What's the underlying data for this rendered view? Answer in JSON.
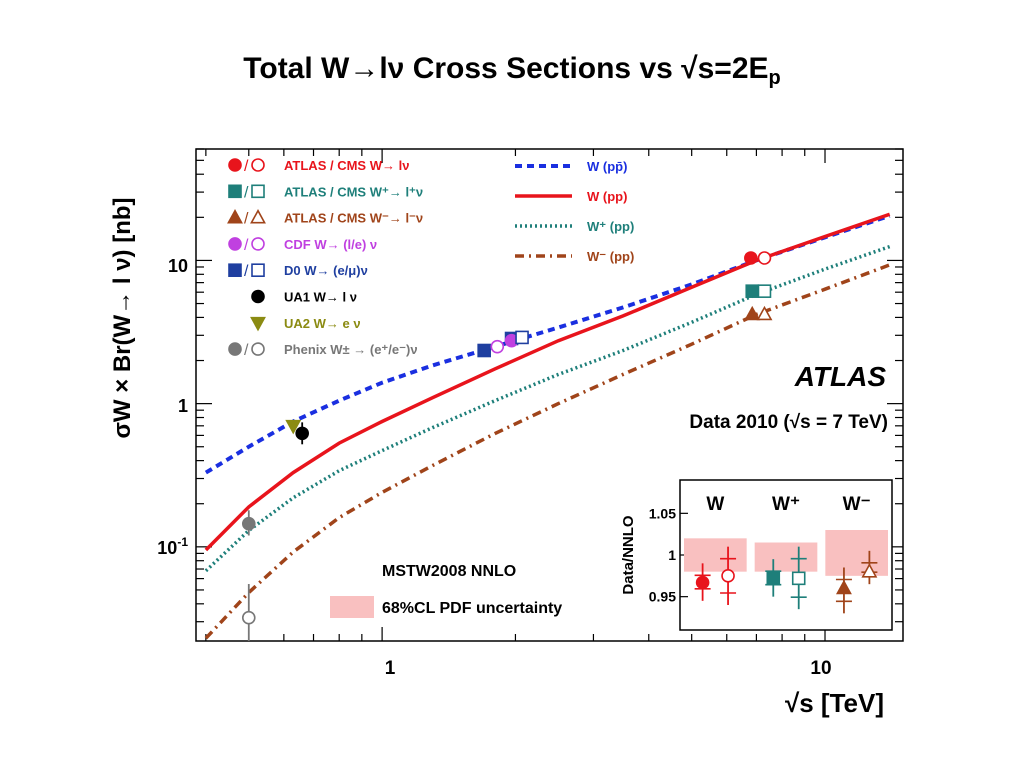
{
  "slide": {
    "title_main": "Total W→lν Cross Sections vs √s=2E",
    "title_sub": "p"
  },
  "chart_data": {
    "type": "scatter",
    "x_scale": "log",
    "y_scale": "log",
    "xlim": [
      0.38,
      15
    ],
    "ylim": [
      0.022,
      60
    ],
    "ylabel": "σW × Br(W→ l ν) [nb]",
    "xlabel": "√s [TeV]",
    "x_ticks": [
      {
        "value": 1,
        "label": "1"
      },
      {
        "value": 10,
        "label": "10"
      }
    ],
    "y_ticks": [
      {
        "value": 0.1,
        "label": "10⁻¹"
      },
      {
        "value": 1,
        "label": "1"
      },
      {
        "value": 10,
        "label": "10"
      }
    ],
    "experiment_label": "ATLAS",
    "data_label": "Data 2010 (√s = 7 TeV)",
    "theory_label": "MSTW2008 NNLO",
    "band_label": "68%CL PDF uncertainty",
    "colors": {
      "atlas_w": "#e8141c",
      "atlas_wplus": "#1e7f7a",
      "atlas_wminus": "#a0441a",
      "cdf": "#c040e0",
      "d0": "#1f3fa0",
      "ua1": "#000000",
      "ua2": "#8b8b12",
      "phenix": "#777777",
      "w_ppbar": "#1a2fe0",
      "w_pp": "#e8141c",
      "wplus_pp": "#1e7f7a",
      "wminus_pp": "#a0441a",
      "pdf_band": "#f9c0c0"
    },
    "legend_markers": [
      {
        "label": "ATLAS / CMS W→ lν",
        "color": "atlas_w",
        "shape": "circle"
      },
      {
        "label": "ATLAS / CMS W⁺→ l⁺ν",
        "color": "atlas_wplus",
        "shape": "square"
      },
      {
        "label": "ATLAS / CMS W⁻→ l⁻ν",
        "color": "atlas_wminus",
        "shape": "triangle"
      },
      {
        "label": "CDF W→ (l/e) ν",
        "color": "cdf",
        "shape": "circle"
      },
      {
        "label": "D0 W→ (e/μ)ν",
        "color": "d0",
        "shape": "square"
      },
      {
        "label": "UA1 W→ l ν",
        "color": "ua1",
        "shape": "circle-single"
      },
      {
        "label": "UA2 W→ e ν",
        "color": "ua2",
        "shape": "tri-down-single"
      },
      {
        "label": "Phenix W± → (e⁺/e⁻)ν",
        "color": "phenix",
        "shape": "circle"
      }
    ],
    "legend_curves": [
      {
        "label": "W (pp̄)",
        "color": "w_ppbar",
        "style": "dash"
      },
      {
        "label": "W (pp)",
        "color": "w_pp",
        "style": "solid"
      },
      {
        "label": "W⁺ (pp)",
        "color": "wplus_pp",
        "style": "dot"
      },
      {
        "label": "W⁻ (pp)",
        "color": "wminus_pp",
        "style": "dashdot"
      }
    ],
    "curves": [
      {
        "name": "W (pp̄)",
        "color": "w_ppbar",
        "style": "dash",
        "x": [
          0.4,
          0.5,
          0.63,
          0.8,
          1.0,
          1.3,
          1.8,
          2.5,
          3.5,
          5.0,
          7.0,
          10.0,
          14.0
        ],
        "y": [
          0.33,
          0.5,
          0.75,
          1.05,
          1.4,
          1.85,
          2.5,
          3.4,
          4.7,
          6.8,
          10.0,
          14.5,
          20.5
        ]
      },
      {
        "name": "W (pp)",
        "color": "w_pp",
        "style": "solid",
        "x": [
          0.4,
          0.5,
          0.63,
          0.8,
          1.0,
          1.3,
          1.8,
          2.5,
          3.5,
          5.0,
          7.0,
          10.0,
          14.0
        ],
        "y": [
          0.095,
          0.19,
          0.33,
          0.53,
          0.75,
          1.1,
          1.75,
          2.75,
          4.1,
          6.5,
          10.0,
          14.7,
          21.0
        ]
      },
      {
        "name": "W⁺ (pp)",
        "color": "wplus_pp",
        "style": "dot",
        "x": [
          0.4,
          0.5,
          0.63,
          0.8,
          1.0,
          1.3,
          1.8,
          2.5,
          3.5,
          5.0,
          7.0,
          10.0,
          14.0
        ],
        "y": [
          0.068,
          0.13,
          0.22,
          0.34,
          0.47,
          0.68,
          1.05,
          1.6,
          2.35,
          3.7,
          5.8,
          8.7,
          12.5
        ]
      },
      {
        "name": "W⁻ (pp)",
        "color": "wminus_pp",
        "style": "dashdot",
        "x": [
          0.4,
          0.5,
          0.63,
          0.8,
          1.0,
          1.3,
          1.8,
          2.5,
          3.5,
          5.0,
          7.0,
          10.0,
          14.0
        ],
        "y": [
          0.023,
          0.048,
          0.092,
          0.16,
          0.24,
          0.37,
          0.62,
          1.0,
          1.6,
          2.6,
          4.2,
          6.3,
          9.3
        ]
      }
    ],
    "points": [
      {
        "x": 0.5,
        "y": 0.145,
        "color": "phenix",
        "shape": "circle",
        "filled": true,
        "err": [
          0.12,
          0.18
        ]
      },
      {
        "x": 0.5,
        "y": 0.032,
        "color": "phenix",
        "shape": "circle",
        "filled": false,
        "err": [
          0.022,
          0.055
        ]
      },
      {
        "x": 0.63,
        "y": 0.7,
        "color": "ua2",
        "shape": "tri-down",
        "filled": true,
        "err": [
          0.64,
          0.76
        ]
      },
      {
        "x": 0.66,
        "y": 0.62,
        "color": "ua1",
        "shape": "circle",
        "filled": true,
        "err": [
          0.52,
          0.74
        ]
      },
      {
        "x": 1.7,
        "y": 2.35,
        "color": "d0",
        "shape": "square",
        "filled": true,
        "err": [
          2.3,
          2.4
        ]
      },
      {
        "x": 1.82,
        "y": 2.5,
        "color": "cdf",
        "shape": "circle",
        "filled": false,
        "err": [
          2.45,
          2.55
        ]
      },
      {
        "x": 1.96,
        "y": 2.85,
        "color": "d0",
        "shape": "square",
        "filled": true,
        "err": [
          2.8,
          2.9
        ]
      },
      {
        "x": 1.96,
        "y": 2.75,
        "color": "cdf",
        "shape": "circle",
        "filled": true,
        "err": [
          2.7,
          2.8
        ]
      },
      {
        "x": 2.07,
        "y": 2.9,
        "color": "d0",
        "shape": "square",
        "filled": false,
        "err": [
          2.85,
          2.95
        ]
      },
      {
        "x": 6.8,
        "y": 10.4,
        "color": "atlas_w",
        "shape": "circle",
        "filled": true,
        "err": [
          10.2,
          10.6
        ]
      },
      {
        "x": 7.3,
        "y": 10.4,
        "color": "atlas_w",
        "shape": "circle",
        "filled": false,
        "err": [
          10.2,
          10.6
        ]
      },
      {
        "x": 6.85,
        "y": 6.1,
        "color": "atlas_wplus",
        "shape": "square",
        "filled": true,
        "err": [
          6.0,
          6.2
        ]
      },
      {
        "x": 7.3,
        "y": 6.1,
        "color": "atlas_wplus",
        "shape": "square",
        "filled": false,
        "err": [
          6.0,
          6.2
        ]
      },
      {
        "x": 6.85,
        "y": 4.2,
        "color": "atlas_wminus",
        "shape": "triangle",
        "filled": true,
        "err": [
          4.1,
          4.3
        ]
      },
      {
        "x": 7.3,
        "y": 4.2,
        "color": "atlas_wminus",
        "shape": "triangle",
        "filled": false,
        "err": [
          4.1,
          4.3
        ]
      }
    ],
    "inset": {
      "ylabel": "Data/NNLO",
      "ylim": [
        0.91,
        1.09
      ],
      "y_ticks": [
        {
          "value": 0.95,
          "label": "0.95"
        },
        {
          "value": 1.0,
          "label": "1"
        },
        {
          "value": 1.05,
          "label": "1.05"
        }
      ],
      "groups": [
        {
          "label": "W",
          "band": [
            0.98,
            1.02
          ],
          "points": [
            {
              "y": 0.967,
              "err": [
                0.945,
                0.99
              ],
              "color": "atlas_w",
              "shape": "circle",
              "filled": true
            },
            {
              "y": 0.975,
              "err": [
                0.94,
                1.01
              ],
              "color": "atlas_w",
              "shape": "circle",
              "filled": false
            }
          ]
        },
        {
          "label": "W⁺",
          "band": [
            0.98,
            1.015
          ],
          "points": [
            {
              "y": 0.972,
              "err": [
                0.95,
                0.995
              ],
              "color": "atlas_wplus",
              "shape": "square",
              "filled": true
            },
            {
              "y": 0.972,
              "err": [
                0.935,
                1.01
              ],
              "color": "atlas_wplus",
              "shape": "square",
              "filled": false
            }
          ]
        },
        {
          "label": "W⁻",
          "band": [
            0.975,
            1.03
          ],
          "points": [
            {
              "y": 0.96,
              "err": [
                0.93,
                0.985
              ],
              "color": "atlas_wminus",
              "shape": "triangle",
              "filled": true
            },
            {
              "y": 0.98,
              "err": [
                0.965,
                1.005
              ],
              "color": "atlas_wminus",
              "shape": "triangle",
              "filled": false
            }
          ]
        }
      ]
    }
  }
}
